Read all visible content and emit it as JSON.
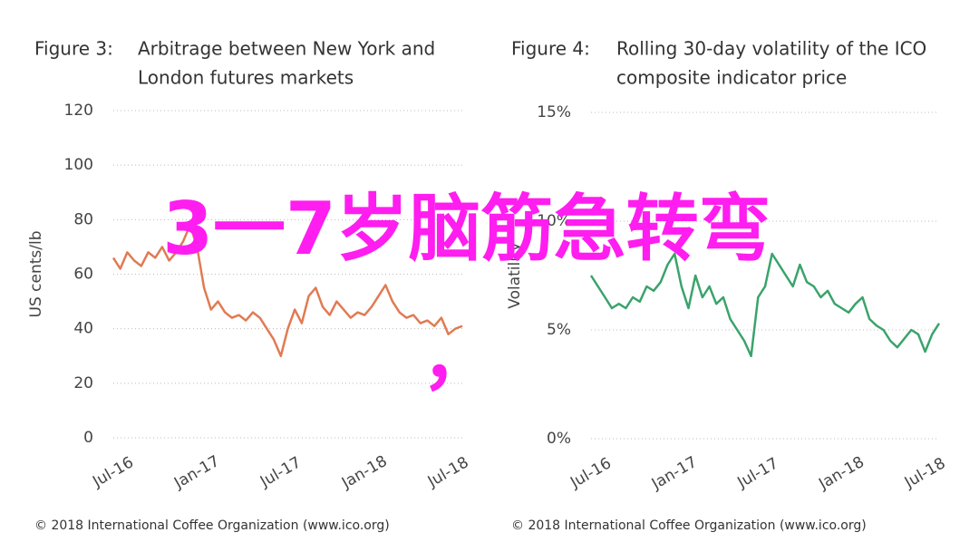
{
  "chart_data": [
    {
      "type": "line",
      "label": "Figure 3:",
      "title": [
        "Arbitrage between New York and",
        "London futures markets"
      ],
      "ylabel": "US cents/lb",
      "source": "© 2018 International Coffee Organization (www.ico.org)",
      "color": "#e07b54",
      "grid": true,
      "ylim": [
        0,
        120
      ],
      "yticks": [
        0,
        20,
        40,
        60,
        80,
        100,
        120
      ],
      "categories": [
        "Jul-16",
        null,
        null,
        null,
        null,
        null,
        null,
        null,
        null,
        null,
        null,
        null,
        "Jan-17",
        null,
        null,
        null,
        null,
        null,
        null,
        null,
        null,
        null,
        null,
        null,
        "Jul-17",
        null,
        null,
        null,
        null,
        null,
        null,
        null,
        null,
        null,
        null,
        null,
        "Jan-18",
        null,
        null,
        null,
        null,
        null,
        null,
        null,
        null,
        null,
        null,
        null,
        "Jul-18",
        null,
        null
      ],
      "values": [
        66,
        62,
        68,
        65,
        63,
        68,
        66,
        70,
        65,
        68,
        72,
        78,
        70,
        55,
        47,
        50,
        46,
        44,
        45,
        43,
        46,
        44,
        40,
        36,
        30,
        40,
        47,
        42,
        52,
        55,
        48,
        45,
        50,
        47,
        44,
        46,
        45,
        48,
        52,
        56,
        50,
        46,
        44,
        45,
        42,
        43,
        41,
        44,
        38,
        40,
        41
      ]
    },
    {
      "type": "line",
      "label": "Figure 4:",
      "title": [
        "Rolling 30-day volatility of the ICO",
        "composite indicator price"
      ],
      "ylabel": "Volatility",
      "source": "© 2018 International Coffee Organization (www.ico.org)",
      "color": "#3aa36b",
      "grid": true,
      "ylim": [
        0,
        15
      ],
      "yticks": [
        {
          "value": 0,
          "label": "0%"
        },
        {
          "value": 5,
          "label": "5%"
        },
        {
          "value": 10,
          "label": "10%"
        },
        {
          "value": 15,
          "label": "15%"
        }
      ],
      "categories": [
        "Jul-16",
        null,
        null,
        null,
        null,
        null,
        null,
        null,
        null,
        null,
        null,
        null,
        "Jan-17",
        null,
        null,
        null,
        null,
        null,
        null,
        null,
        null,
        null,
        null,
        null,
        "Jul-17",
        null,
        null,
        null,
        null,
        null,
        null,
        null,
        null,
        null,
        null,
        null,
        "Jan-18",
        null,
        null,
        null,
        null,
        null,
        null,
        null,
        null,
        null,
        null,
        null,
        "Jul-18",
        null,
        null
      ],
      "values": [
        7.5,
        7,
        6.5,
        6,
        6.2,
        6,
        6.5,
        6.3,
        7,
        6.8,
        7.2,
        8,
        8.5,
        7,
        6,
        7.5,
        6.5,
        7,
        6.2,
        6.5,
        5.5,
        5,
        4.5,
        3.8,
        6.5,
        7,
        8.5,
        8,
        7.5,
        7,
        8,
        7.2,
        7,
        6.5,
        6.8,
        6.2,
        6,
        5.8,
        6.2,
        6.5,
        5.5,
        5.2,
        5,
        4.5,
        4.2,
        4.6,
        5,
        4.8,
        4,
        4.8,
        5.3
      ]
    }
  ],
  "overlay": [
    "3一7岁脑筋急转弯",
    "，"
  ]
}
